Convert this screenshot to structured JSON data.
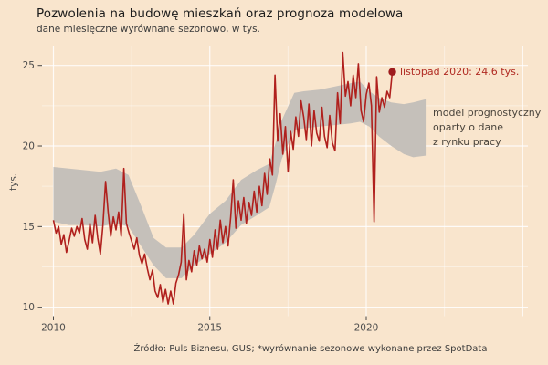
{
  "header": {
    "title": "Pozwolenia na budowę mieszkań oraz prognoza modelowa",
    "subtitle": "dane miesięczne wyrównane sezonowo, w tys."
  },
  "footer": {
    "source": "Źródło: Puls Biznesu, GUS; *wyrównanie sezonowe wykonane przez SpotData"
  },
  "chart_data": {
    "type": "line",
    "title": "Pozwolenia na budowę mieszkań oraz prognoza modelowa",
    "subtitle": "dane miesięczne wyrównane sezonowo, w tys.",
    "ylabel": "tys.",
    "xlabel": "",
    "grid": "white-on-peach",
    "x_axis": {
      "tick_labels": [
        "2010",
        "2015",
        "2020"
      ],
      "tick_years": [
        2010,
        2015,
        2020
      ],
      "minor_years": [
        2012.5,
        2017.5,
        2022.5
      ],
      "unlabeled_major_years": [
        2025
      ],
      "range": [
        2009.64,
        2022.35
      ]
    },
    "y_axis": {
      "label": "tys.",
      "ticks": [
        10,
        15,
        20,
        25
      ],
      "minor": [
        12.5,
        17.5,
        22.5
      ],
      "range": [
        8.3,
        26.2
      ]
    },
    "series": {
      "name": "pozwolenia na budowę mieszkań (wyrównane sezonowo)",
      "frequency": "monthly",
      "start_year": 2010,
      "start_month": 1,
      "end_label": "listopad 2020",
      "values": [
        15.4,
        14.6,
        15.0,
        13.9,
        14.5,
        13.4,
        14.1,
        14.9,
        14.4,
        15.0,
        14.6,
        15.5,
        14.2,
        13.6,
        15.2,
        14.0,
        15.7,
        14.3,
        13.3,
        15.1,
        17.8,
        15.9,
        14.4,
        15.6,
        14.8,
        15.9,
        14.4,
        18.6,
        15.2,
        14.6,
        14.1,
        13.6,
        14.3,
        13.2,
        12.7,
        13.3,
        12.4,
        11.7,
        12.3,
        11.0,
        10.6,
        11.4,
        10.3,
        11.1,
        10.2,
        11.0,
        10.2,
        11.5,
        12.0,
        12.8,
        15.8,
        11.7,
        12.9,
        12.2,
        13.5,
        12.6,
        13.8,
        13.0,
        13.6,
        12.8,
        14.2,
        13.1,
        14.8,
        13.6,
        15.4,
        14.0,
        15.0,
        13.8,
        15.6,
        17.9,
        14.9,
        16.6,
        15.4,
        16.8,
        15.2,
        16.5,
        15.7,
        17.2,
        15.9,
        17.5,
        16.3,
        18.3,
        17.0,
        19.2,
        18.2,
        24.4,
        20.3,
        22.0,
        19.5,
        21.2,
        18.4,
        20.9,
        19.8,
        21.8,
        20.6,
        22.8,
        21.8,
        20.4,
        22.6,
        20.0,
        22.2,
        20.8,
        20.3,
        22.4,
        20.6,
        19.9,
        21.9,
        20.2,
        19.7,
        23.3,
        21.4,
        25.8,
        23.1,
        24.0,
        22.5,
        24.4,
        23.0,
        25.1,
        22.2,
        21.5,
        23.2,
        23.9,
        22.5,
        15.3,
        24.3,
        22.1,
        23.0,
        22.4,
        23.4,
        23.0,
        24.6
      ]
    },
    "band": {
      "name": "model prognostyczny oparty o dane z rynku pracy",
      "anchors_year_lower_upper": [
        [
          2010.0,
          15.3,
          18.7
        ],
        [
          2010.5,
          15.1,
          18.6
        ],
        [
          2011.0,
          15.1,
          18.5
        ],
        [
          2011.5,
          15.0,
          18.4
        ],
        [
          2012.0,
          15.2,
          18.6
        ],
        [
          2012.4,
          15.0,
          18.2
        ],
        [
          2012.8,
          13.8,
          16.3
        ],
        [
          2013.2,
          12.6,
          14.3
        ],
        [
          2013.6,
          11.8,
          13.7
        ],
        [
          2014.1,
          11.8,
          13.7
        ],
        [
          2014.5,
          12.6,
          14.5
        ],
        [
          2015.0,
          13.3,
          15.8
        ],
        [
          2015.5,
          14.0,
          16.6
        ],
        [
          2016.0,
          15.1,
          17.9
        ],
        [
          2016.5,
          15.7,
          18.5
        ],
        [
          2016.9,
          16.2,
          18.9
        ],
        [
          2017.1,
          17.6,
          20.2
        ],
        [
          2017.3,
          19.2,
          21.6
        ],
        [
          2017.7,
          21.0,
          23.3
        ],
        [
          2018.0,
          21.1,
          23.4
        ],
        [
          2018.5,
          21.2,
          23.5
        ],
        [
          2019.0,
          21.3,
          23.7
        ],
        [
          2019.5,
          21.4,
          23.9
        ],
        [
          2019.8,
          21.5,
          24.0
        ],
        [
          2020.1,
          21.2,
          23.4
        ],
        [
          2020.4,
          20.6,
          23.0
        ],
        [
          2020.8,
          20.0,
          22.7
        ],
        [
          2021.2,
          19.5,
          22.6
        ],
        [
          2021.5,
          19.3,
          22.7
        ],
        [
          2021.9,
          19.4,
          22.9
        ]
      ]
    },
    "annotations": {
      "last_point": {
        "label": "listopad 2020: 24.6 tys.",
        "year_month": "2020-11",
        "value": 24.6
      },
      "model_note": {
        "text": "model prognostyczny\noparty o dane\nz rynku pracy"
      }
    },
    "colors": {
      "background": "#f9e5cd",
      "line": "#b0201d",
      "dot": "#9e1b1e",
      "band": "#c5c0ba",
      "grid_major": "rgba(255,255,255,0.85)",
      "grid_minor": "rgba(255,255,255,0.42)",
      "tick": "#4a4a4a",
      "axis_text": "#4d4d4d",
      "annotation_red": "#b02a22",
      "annotation_gray": "#4a443c"
    }
  }
}
